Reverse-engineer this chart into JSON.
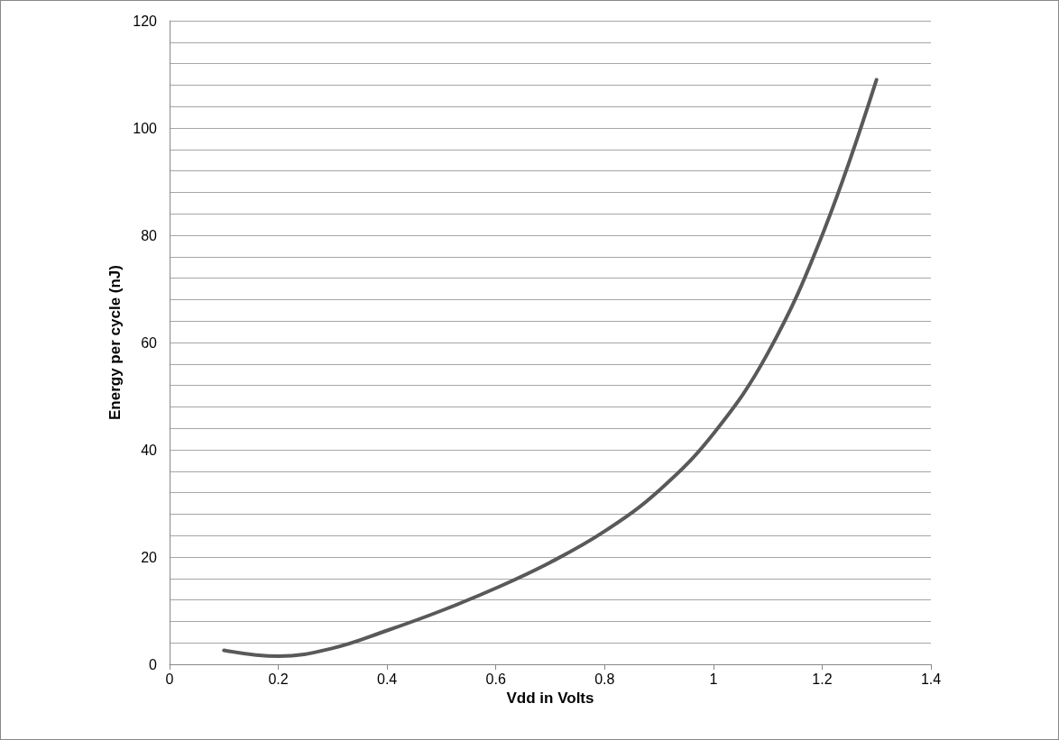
{
  "chart_data": {
    "type": "line",
    "xlabel": "Vdd in Volts",
    "ylabel": "Energy per cycle (nJ)",
    "x": [
      0.1,
      0.2,
      0.3,
      0.4,
      0.5,
      0.6,
      0.7,
      0.8,
      0.9,
      1.0,
      1.1,
      1.2,
      1.3
    ],
    "series": [
      {
        "color": "#595959",
        "values": [
          2.6,
          1.5,
          3.0,
          6.3,
          10,
          14.2,
          19,
          24.8,
          32.4,
          43,
          58,
          80,
          109
        ]
      }
    ],
    "xlim": [
      0,
      1.4
    ],
    "xticks": [
      0,
      0.2,
      0.4,
      0.6,
      0.8,
      1,
      1.2,
      1.4
    ],
    "ylim": [
      0,
      120
    ],
    "yticks": [
      0,
      {
        "value": 4,
        "label": null
      },
      {
        "value": 8,
        "label": null
      },
      {
        "value": 12,
        "label": null
      },
      {
        "value": 16,
        "label": null
      },
      20,
      {
        "value": 24,
        "label": null
      },
      {
        "value": 28,
        "label": null
      },
      {
        "value": 32,
        "label": null
      },
      {
        "value": 36,
        "label": null
      },
      40,
      {
        "value": 44,
        "label": null
      },
      {
        "value": 48,
        "label": null
      },
      {
        "value": 52,
        "label": null
      },
      {
        "value": 56,
        "label": null
      },
      60,
      {
        "value": 64,
        "label": null
      },
      {
        "value": 68,
        "label": null
      },
      {
        "value": 72,
        "label": null
      },
      {
        "value": 76,
        "label": null
      },
      80,
      {
        "value": 84,
        "label": null
      },
      {
        "value": 88,
        "label": null
      },
      {
        "value": 92,
        "label": null
      },
      {
        "value": 96,
        "label": null
      },
      100,
      {
        "value": 104,
        "label": null
      },
      {
        "value": 108,
        "label": null
      },
      {
        "value": 112,
        "label": null
      },
      {
        "value": 116,
        "label": null
      },
      120
    ],
    "grid": "y",
    "marker": "none",
    "line_style": "solid"
  }
}
